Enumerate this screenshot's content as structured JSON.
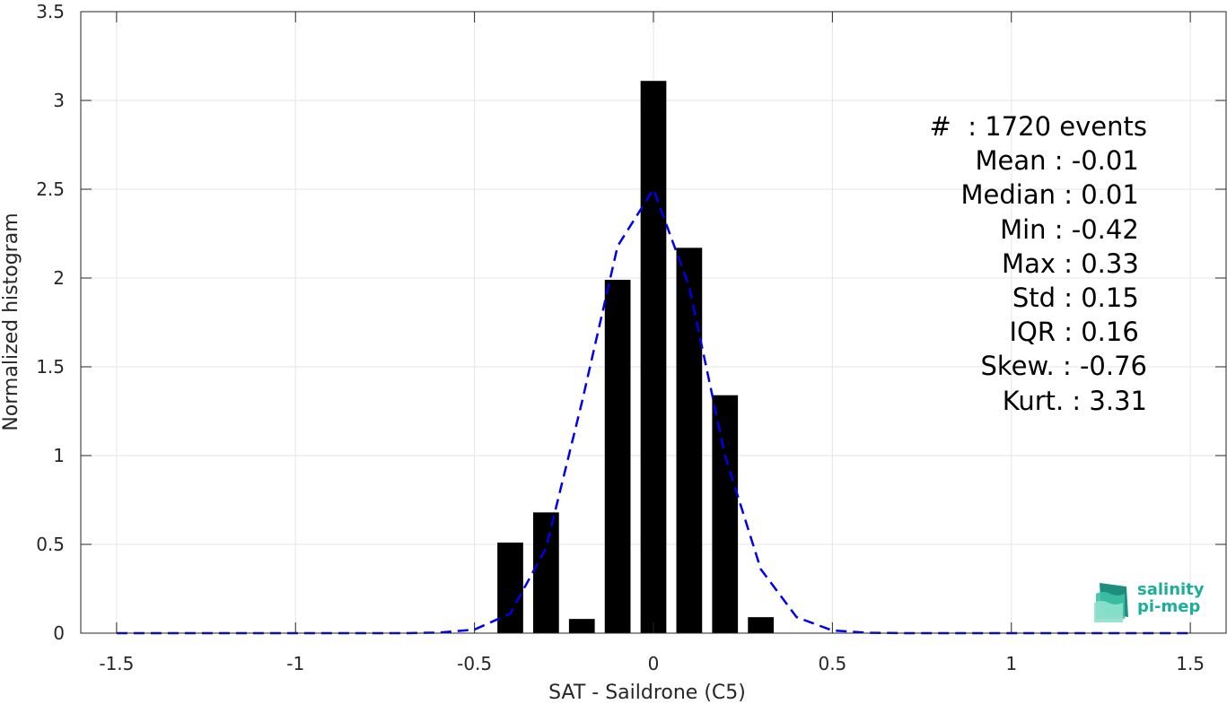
{
  "chart_data": {
    "type": "bar",
    "xlabel": "SAT - Saildrone (C5)",
    "ylabel": "Normalized histogram",
    "xlim": [
      -1.6,
      1.6
    ],
    "ylim": [
      0,
      3.5
    ],
    "xticks": [
      "-1.5",
      "-1",
      "-0.5",
      "0",
      "0.5",
      "1",
      "1.5"
    ],
    "xtick_values": [
      -1.5,
      -1,
      -0.5,
      0,
      0.5,
      1,
      1.5
    ],
    "yticks": [
      "0",
      "0.5",
      "1",
      "1.5",
      "2",
      "2.5",
      "3",
      "3.5"
    ],
    "ytick_values": [
      0,
      0.5,
      1,
      1.5,
      2,
      2.5,
      3,
      3.5
    ],
    "grid": true,
    "bars": {
      "centers": [
        -0.4,
        -0.3,
        -0.2,
        -0.1,
        0.0,
        0.1,
        0.2,
        0.3
      ],
      "values": [
        0.51,
        0.68,
        0.08,
        1.99,
        3.11,
        2.17,
        1.34,
        0.09
      ],
      "color": "#000000"
    },
    "fit_curve": {
      "style": "dashed",
      "color": "#0000ee",
      "x": [
        -1.5,
        -1.4,
        -1.3,
        -1.2,
        -1.1,
        -1.0,
        -0.9,
        -0.8,
        -0.7,
        -0.6,
        -0.5,
        -0.4,
        -0.3,
        -0.2,
        -0.1,
        0.0,
        0.1,
        0.2,
        0.3,
        0.4,
        0.5,
        0.6,
        0.7,
        0.8,
        0.9,
        1.0,
        1.1,
        1.2,
        1.3,
        1.4,
        1.5
      ],
      "y": [
        0,
        0,
        0,
        0,
        0,
        0,
        0,
        0,
        0,
        0.003,
        0.02,
        0.11,
        0.48,
        1.3,
        2.18,
        2.5,
        1.95,
        1.0,
        0.36,
        0.09,
        0.015,
        0.002,
        0,
        0,
        0,
        0,
        0,
        0,
        0,
        0,
        0
      ]
    }
  },
  "stats": {
    "lines": [
      "#  : 1720 events",
      "Mean : -0.01 ",
      "Median : 0.01 ",
      "Min : -0.42 ",
      "Max : 0.33 ",
      "Std : 0.15 ",
      "IQR : 0.16 ",
      "Skew. : -0.76",
      "Kurt. : 3.31"
    ]
  },
  "logo": {
    "line1": "salinity",
    "line2": "pi-mep",
    "color": "#1aae9b"
  }
}
